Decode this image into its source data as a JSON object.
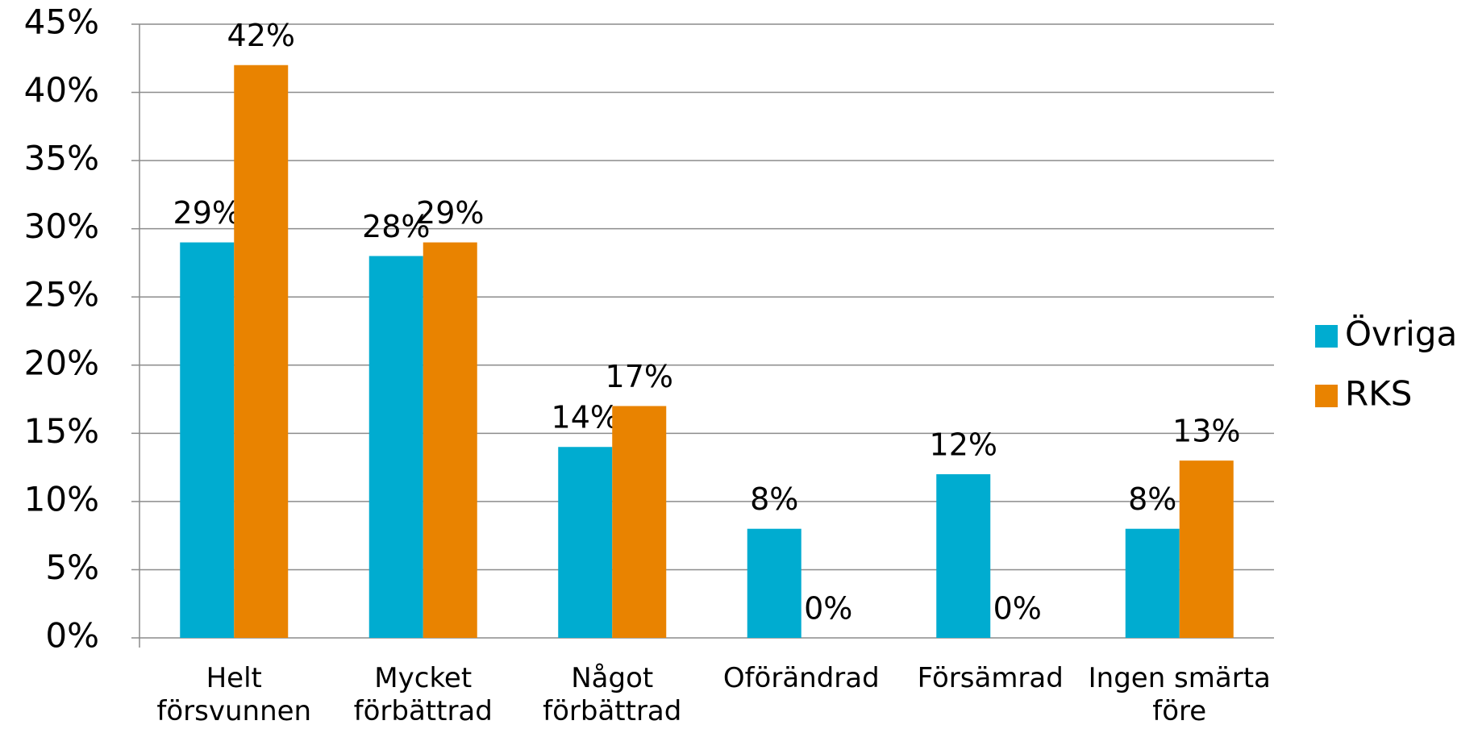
{
  "chart_data": {
    "type": "bar",
    "categories": [
      "Helt försvunnen",
      "Mycket förbättrad",
      "Något förbättrad",
      "Oförändrad",
      "Försämrad",
      "Ingen smärta före"
    ],
    "series": [
      {
        "name": "Övriga",
        "color": "#00acd0",
        "values": [
          29,
          28,
          14,
          8,
          12,
          8
        ],
        "value_labels": [
          "29%",
          "28%",
          "14%",
          "8%",
          "12%",
          "8%"
        ]
      },
      {
        "name": "RKS",
        "color": "#e98300",
        "values": [
          42,
          29,
          17,
          0,
          0,
          13
        ],
        "value_labels": [
          "42%",
          "29%",
          "17%",
          "0%",
          "0%",
          "13%"
        ]
      }
    ],
    "ylim": [
      0,
      45
    ],
    "yticks": [
      {
        "value": 0,
        "label": "0%"
      },
      {
        "value": 5,
        "label": "5%"
      },
      {
        "value": 10,
        "label": "10%"
      },
      {
        "value": 15,
        "label": "15%"
      },
      {
        "value": 20,
        "label": "20%"
      },
      {
        "value": 25,
        "label": "25%"
      },
      {
        "value": 30,
        "label": "30%"
      },
      {
        "value": 35,
        "label": "35%"
      },
      {
        "value": 40,
        "label": "40%"
      },
      {
        "value": 45,
        "label": "45%"
      }
    ],
    "grid": true,
    "legend": "right"
  }
}
